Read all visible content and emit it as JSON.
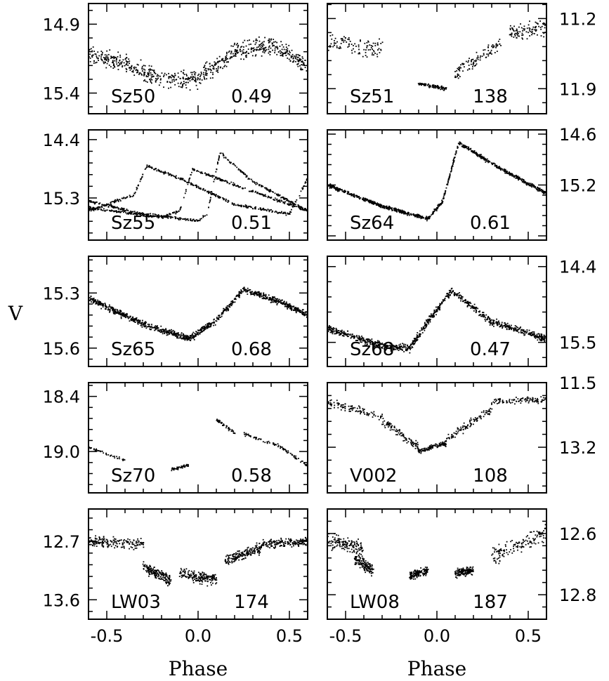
{
  "chart_data": {
    "type": "scatter",
    "ylabel": "V",
    "xlabel": "Phase",
    "xlim": [
      -0.6,
      0.6
    ],
    "x_ticks": [
      "-0.5",
      "0.0",
      "0.5"
    ],
    "panels": [
      {
        "star": "Sz50",
        "period": "0.49",
        "ylim": [
          15.55,
          14.75
        ],
        "y_ticks": [
          {
            "v": 14.9,
            "label": "14.9"
          },
          {
            "v": 15.4,
            "label": "15.4"
          }
        ],
        "axis_side": "left",
        "shape": [
          [
            -0.6,
            15.12
          ],
          [
            -0.4,
            15.18
          ],
          [
            -0.2,
            15.3
          ],
          [
            0.0,
            15.3
          ],
          [
            0.2,
            15.1
          ],
          [
            0.4,
            15.05
          ],
          [
            0.6,
            15.2
          ]
        ],
        "spread": 0.18,
        "points": 700
      },
      {
        "star": "Sz51",
        "period": "138",
        "ylim": [
          12.15,
          11.05
        ],
        "y_ticks": [
          {
            "v": 11.2,
            "label": "11.2"
          },
          {
            "v": 11.9,
            "label": "11.9"
          }
        ],
        "axis_side": "right",
        "segments": [
          [
            -0.6,
            -0.3,
            11.45,
            11.5,
            0.3
          ],
          [
            -0.1,
            0.05,
            11.85,
            11.9,
            0.05
          ],
          [
            0.1,
            0.35,
            11.75,
            11.45,
            0.2
          ],
          [
            0.4,
            0.6,
            11.35,
            11.3,
            0.25
          ]
        ],
        "points": 400
      },
      {
        "star": "Sz55",
        "period": "0.51",
        "ylim": [
          15.95,
          14.25
        ],
        "y_ticks": [
          {
            "v": 14.4,
            "label": "14.4"
          },
          {
            "v": 15.3,
            "label": "15.3"
          }
        ],
        "axis_side": "left",
        "curves": [
          [
            [
              -0.6,
              15.35
            ],
            [
              -0.3,
              15.55
            ],
            [
              0.0,
              15.65
            ],
            [
              0.05,
              15.55
            ],
            [
              0.12,
              14.6
            ],
            [
              0.3,
              15.05
            ],
            [
              0.6,
              15.5
            ]
          ],
          [
            [
              -0.6,
              15.5
            ],
            [
              -0.35,
              15.25
            ],
            [
              -0.28,
              14.8
            ],
            [
              -0.1,
              15.0
            ],
            [
              0.2,
              15.4
            ],
            [
              0.5,
              15.55
            ],
            [
              0.6,
              15.0
            ]
          ],
          [
            [
              -0.6,
              15.45
            ],
            [
              -0.2,
              15.6
            ],
            [
              -0.1,
              15.5
            ],
            [
              -0.03,
              14.85
            ],
            [
              0.2,
              15.1
            ],
            [
              0.6,
              15.5
            ]
          ]
        ],
        "points": 1100
      },
      {
        "star": "Sz64",
        "period": "0.61",
        "ylim": [
          15.85,
          14.55
        ],
        "y_ticks": [
          {
            "v": 14.6,
            "label": "14.6"
          },
          {
            "v": 15.2,
            "label": "15.2"
          }
        ],
        "axis_side": "right",
        "shape": [
          [
            -0.6,
            15.2
          ],
          [
            -0.3,
            15.45
          ],
          [
            -0.05,
            15.6
          ],
          [
            0.03,
            15.4
          ],
          [
            0.12,
            14.7
          ],
          [
            0.3,
            14.95
          ],
          [
            0.6,
            15.3
          ]
        ],
        "spread": 0.06,
        "points": 900
      },
      {
        "star": "Sz65",
        "period": "0.68",
        "ylim": [
          15.7,
          15.1
        ],
        "y_ticks": [
          {
            "v": 15.3,
            "label": "15.3"
          },
          {
            "v": 15.6,
            "label": "15.6"
          }
        ],
        "axis_side": "left",
        "shape": [
          [
            -0.6,
            15.33
          ],
          [
            -0.3,
            15.47
          ],
          [
            -0.05,
            15.55
          ],
          [
            0.1,
            15.45
          ],
          [
            0.25,
            15.28
          ],
          [
            0.45,
            15.35
          ],
          [
            0.6,
            15.42
          ]
        ],
        "spread": 0.05,
        "points": 1000
      },
      {
        "star": "Sz68",
        "period": "0.47",
        "ylim": [
          15.85,
          14.25
        ],
        "y_ticks": [
          {
            "v": 14.4,
            "label": "14.4"
          },
          {
            "v": 15.5,
            "label": "15.5"
          }
        ],
        "axis_side": "right",
        "shape": [
          [
            -0.6,
            15.3
          ],
          [
            -0.3,
            15.55
          ],
          [
            -0.15,
            15.6
          ],
          [
            -0.05,
            15.2
          ],
          [
            0.08,
            14.75
          ],
          [
            0.3,
            15.2
          ],
          [
            0.6,
            15.45
          ]
        ],
        "spread": 0.15,
        "points": 900
      },
      {
        "star": "Sz70",
        "period": "0.58",
        "ylim": [
          19.45,
          18.25
        ],
        "y_ticks": [
          {
            "v": 18.4,
            "label": "18.4"
          },
          {
            "v": 19.0,
            "label": "19.0"
          }
        ],
        "axis_side": "left",
        "segments": [
          [
            -0.6,
            -0.4,
            18.95,
            19.1,
            0.05
          ],
          [
            -0.15,
            -0.05,
            19.2,
            19.15,
            0.05
          ],
          [
            0.1,
            0.2,
            18.65,
            18.8,
            0.05
          ],
          [
            0.25,
            0.45,
            18.8,
            18.95,
            0.06
          ],
          [
            0.45,
            0.6,
            18.95,
            19.15,
            0.05
          ]
        ],
        "points": 220
      },
      {
        "star": "V002",
        "period": "108",
        "ylim": [
          14.4,
          11.5
        ],
        "y_ticks": [
          {
            "v": 11.5,
            "label": "11.5"
          },
          {
            "v": 13.2,
            "label": "13.2"
          }
        ],
        "axis_side": "right",
        "segments": [
          [
            -0.6,
            -0.3,
            12.0,
            12.4,
            0.3
          ],
          [
            -0.3,
            -0.1,
            12.5,
            13.2,
            0.3
          ],
          [
            -0.1,
            0.05,
            13.3,
            13.1,
            0.2
          ],
          [
            0.05,
            0.3,
            13.0,
            12.2,
            0.3
          ],
          [
            0.3,
            0.6,
            12.0,
            11.95,
            0.25
          ]
        ],
        "points": 500
      },
      {
        "star": "LW03",
        "period": "174",
        "ylim": [
          13.9,
          12.2
        ],
        "y_ticks": [
          {
            "v": 12.7,
            "label": "12.7"
          },
          {
            "v": 13.6,
            "label": "13.6"
          }
        ],
        "axis_side": "left",
        "segments": [
          [
            -0.6,
            -0.3,
            12.7,
            12.75,
            0.25
          ],
          [
            -0.3,
            -0.15,
            13.1,
            13.3,
            0.25
          ],
          [
            -0.1,
            0.1,
            13.2,
            13.3,
            0.25
          ],
          [
            0.15,
            0.35,
            13.0,
            12.8,
            0.25
          ],
          [
            0.35,
            0.6,
            12.75,
            12.7,
            0.2
          ]
        ],
        "points": 900
      },
      {
        "star": "LW08",
        "period": "187",
        "ylim": [
          12.88,
          12.52
        ],
        "y_ticks": [
          {
            "v": 12.6,
            "label": "12.6"
          },
          {
            "v": 12.8,
            "label": "12.8"
          }
        ],
        "axis_side": "right",
        "segments": [
          [
            -0.6,
            -0.4,
            12.62,
            12.65,
            0.07
          ],
          [
            -0.45,
            -0.35,
            12.68,
            12.72,
            0.06
          ],
          [
            -0.15,
            -0.05,
            12.74,
            12.72,
            0.04
          ],
          [
            0.1,
            0.2,
            12.73,
            12.72,
            0.04
          ],
          [
            0.3,
            0.6,
            12.68,
            12.6,
            0.08
          ]
        ],
        "points": 700
      }
    ]
  }
}
